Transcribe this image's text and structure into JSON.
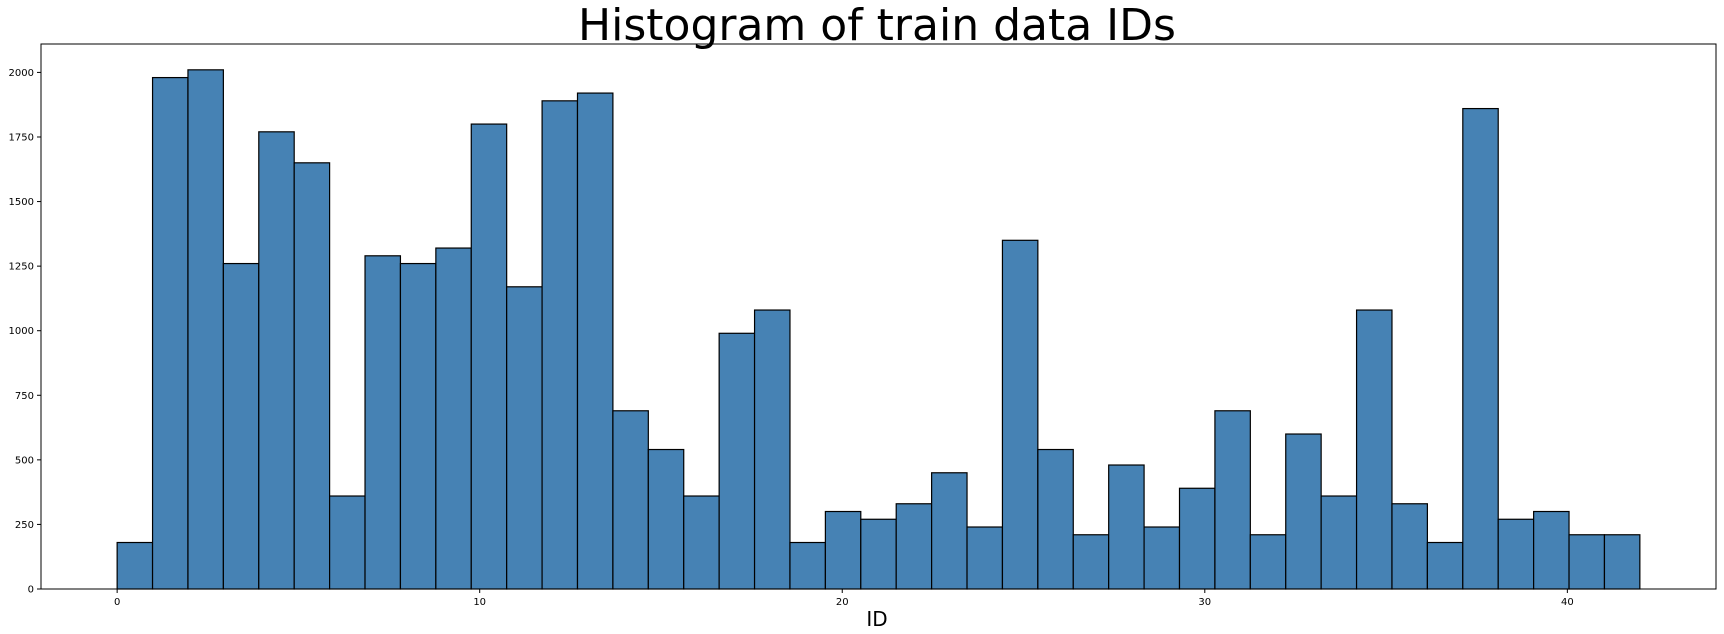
{
  "chart_data": {
    "type": "bar",
    "title": "Histogram of train data IDs",
    "xlabel": "ID",
    "ylabel": "",
    "bin_edges": [
      0,
      0.976744,
      1.953488,
      2.930233,
      3.906977,
      4.883721,
      5.860465,
      6.837209,
      7.813953,
      8.790698,
      9.767442,
      10.744186,
      11.72093,
      12.697674,
      13.674419,
      14.651163,
      15.627907,
      16.604651,
      17.581395,
      18.55814,
      19.534884,
      20.511628,
      21.488372,
      22.465116,
      23.44186,
      24.418605,
      25.395349,
      26.372093,
      27.348837,
      28.325581,
      29.302326,
      30.27907,
      31.255814,
      32.232558,
      33.209302,
      34.186047,
      35.162791,
      36.139535,
      37.116279,
      38.093023,
      39.069767,
      40.046512,
      41.023256,
      42
    ],
    "values": [
      180,
      1980,
      2010,
      1260,
      1770,
      1650,
      360,
      1290,
      1260,
      1320,
      1800,
      1170,
      1890,
      1920,
      690,
      540,
      360,
      990,
      1080,
      180,
      300,
      270,
      330,
      450,
      240,
      1350,
      540,
      210,
      480,
      240,
      390,
      690,
      210,
      600,
      360,
      1080,
      330,
      180,
      1860,
      270,
      300,
      210,
      210
    ],
    "xlim": [
      -2.1,
      44.1
    ],
    "ylim": [
      0,
      2110
    ],
    "xticks": [
      0,
      10,
      20,
      30,
      40
    ],
    "yticks": [
      0,
      250,
      500,
      750,
      1000,
      1250,
      1500,
      1750,
      2000
    ],
    "bar_color": "#4682B4",
    "edge_color": "#000000",
    "grid": false,
    "legend": "none"
  }
}
